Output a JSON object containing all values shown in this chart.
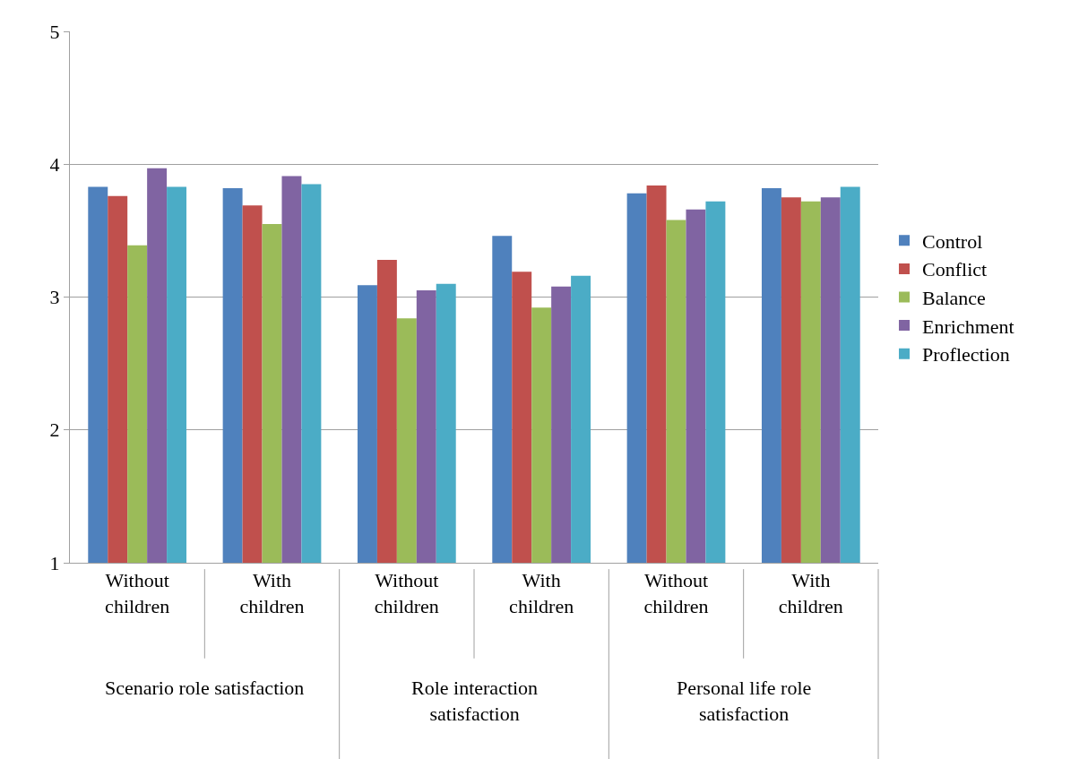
{
  "chart_data": {
    "type": "bar",
    "categories": [
      "Without children",
      "With children",
      "Without children",
      "With children",
      "Without children",
      "With children"
    ],
    "series": [
      {
        "name": "Control",
        "color": "#4f81bd",
        "values": [
          3.83,
          3.82,
          3.09,
          3.46,
          3.78,
          3.82
        ]
      },
      {
        "name": "Conflict",
        "color": "#c0504d",
        "values": [
          3.76,
          3.69,
          3.28,
          3.19,
          3.84,
          3.75
        ]
      },
      {
        "name": "Balance",
        "color": "#9bbb59",
        "values": [
          3.39,
          3.55,
          2.84,
          2.92,
          3.58,
          3.72
        ]
      },
      {
        "name": "Enrichment",
        "color": "#8064a2",
        "values": [
          3.97,
          3.91,
          3.05,
          3.08,
          3.66,
          3.75
        ]
      },
      {
        "name": "Proflection",
        "color": "#4bacc6",
        "values": [
          3.83,
          3.85,
          3.1,
          3.16,
          3.72,
          3.83
        ]
      }
    ],
    "annotations": [
      "Scenario role satisfaction",
      "Role interaction satisfaction",
      "Personal life role satisfaction"
    ],
    "ylim": [
      1,
      5
    ],
    "yticks": [
      1,
      2,
      3,
      4,
      5
    ],
    "grid": "y",
    "legend": "right"
  }
}
